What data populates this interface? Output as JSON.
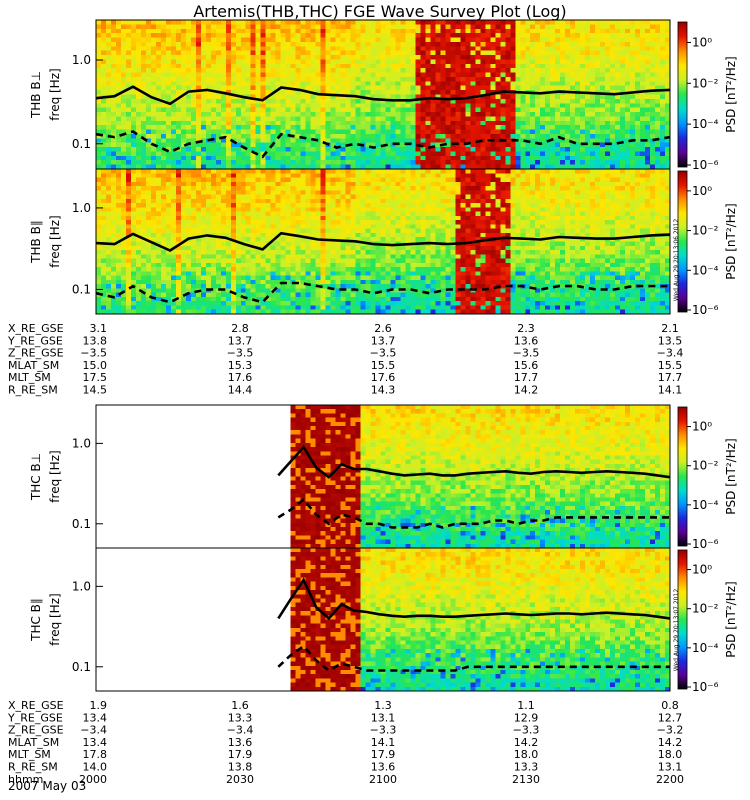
{
  "chart_data": {
    "type": "heatmap",
    "title": "Artemis(THB,THC) FGE Wave Survey Plot (Log)",
    "colorbar": {
      "label": "PSD [nT²/Hz]",
      "scale": "log",
      "range": [
        1e-06,
        10
      ],
      "ticks": [
        "10⁰",
        "10⁻²",
        "10⁻⁴",
        "10⁻⁶"
      ],
      "tick_values": [
        1,
        0.01,
        0.0001,
        1e-06
      ],
      "colors": [
        "#000000",
        "#5a0096",
        "#1e28dc",
        "#0096ff",
        "#00dccc",
        "#28e650",
        "#c8f028",
        "#ffe600",
        "#ff8c00",
        "#e61400",
        "#960000"
      ]
    },
    "yaxis": {
      "label": "freq [Hz]",
      "scale": "log",
      "ylim": [
        0.05,
        3.0
      ],
      "ticks": [
        "1.0",
        "0.1"
      ],
      "tick_values": [
        1.0,
        0.1
      ]
    },
    "panels": [
      {
        "id": "thb-bperp",
        "name": "THB B⊥",
        "ylabel": "freq [Hz]",
        "gap_until": 0.0,
        "storm": [
          0.55,
          0.73
        ],
        "solid_line": [
          0.35,
          0.37,
          0.48,
          0.36,
          0.3,
          0.42,
          0.44,
          0.4,
          0.36,
          0.33,
          0.47,
          0.44,
          0.39,
          0.38,
          0.37,
          0.34,
          0.33,
          0.33,
          0.35,
          0.34,
          0.35,
          0.38,
          0.42,
          0.41,
          0.4,
          0.42,
          0.41,
          0.4,
          0.39,
          0.41,
          0.43,
          0.44
        ],
        "dashed_line": [
          0.13,
          0.12,
          0.14,
          0.1,
          0.08,
          0.1,
          0.11,
          0.12,
          0.09,
          0.07,
          0.13,
          0.12,
          0.11,
          0.09,
          0.1,
          0.09,
          0.1,
          0.1,
          0.09,
          0.1,
          0.1,
          0.11,
          0.11,
          0.11,
          0.1,
          0.12,
          0.1,
          0.1,
          0.1,
          0.11,
          0.11,
          0.12
        ]
      },
      {
        "id": "thb-bpar",
        "name": "THB B∥",
        "ylabel": "freq [Hz]",
        "gap_until": 0.0,
        "storm": [
          0.62,
          0.72
        ],
        "solid_line": [
          0.37,
          0.36,
          0.48,
          0.38,
          0.3,
          0.42,
          0.46,
          0.43,
          0.36,
          0.31,
          0.49,
          0.45,
          0.41,
          0.4,
          0.39,
          0.36,
          0.35,
          0.36,
          0.37,
          0.36,
          0.37,
          0.4,
          0.43,
          0.42,
          0.41,
          0.44,
          0.43,
          0.42,
          0.42,
          0.44,
          0.46,
          0.47
        ],
        "dashed_line": [
          0.09,
          0.08,
          0.11,
          0.08,
          0.07,
          0.09,
          0.1,
          0.1,
          0.08,
          0.07,
          0.12,
          0.12,
          0.11,
          0.1,
          0.1,
          0.09,
          0.1,
          0.1,
          0.09,
          0.1,
          0.1,
          0.1,
          0.11,
          0.11,
          0.1,
          0.11,
          0.11,
          0.1,
          0.1,
          0.11,
          0.11,
          0.11
        ]
      },
      {
        "id": "thc-bperp",
        "name": "THC B⊥",
        "ylabel": "freq [Hz]",
        "gap_until": 0.335,
        "storm": [
          1.0,
          1.5
        ],
        "solid_line": [
          0.4,
          0.6,
          0.9,
          0.5,
          0.38,
          0.55,
          0.48,
          0.48,
          0.45,
          0.42,
          0.4,
          0.41,
          0.42,
          0.4,
          0.4,
          0.42,
          0.43,
          0.44,
          0.45,
          0.43,
          0.42,
          0.44,
          0.45,
          0.44,
          0.43,
          0.44,
          0.45,
          0.44,
          0.43,
          0.42,
          0.4,
          0.38
        ],
        "dashed_line": [
          0.12,
          0.15,
          0.2,
          0.13,
          0.1,
          0.13,
          0.12,
          0.1,
          0.1,
          0.09,
          0.09,
          0.09,
          0.1,
          0.09,
          0.1,
          0.1,
          0.1,
          0.11,
          0.11,
          0.1,
          0.11,
          0.11,
          0.12,
          0.12,
          0.12,
          0.12,
          0.12,
          0.12,
          0.12,
          0.12,
          0.12,
          0.12
        ]
      },
      {
        "id": "thc-bpar",
        "name": "THC B∥",
        "ylabel": "freq [Hz]",
        "gap_until": 0.335,
        "storm": [
          1.0,
          1.5
        ],
        "solid_line": [
          0.4,
          0.7,
          1.2,
          0.55,
          0.4,
          0.6,
          0.5,
          0.48,
          0.45,
          0.43,
          0.42,
          0.43,
          0.43,
          0.42,
          0.42,
          0.43,
          0.44,
          0.45,
          0.46,
          0.45,
          0.44,
          0.45,
          0.46,
          0.46,
          0.45,
          0.46,
          0.47,
          0.46,
          0.45,
          0.44,
          0.42,
          0.4
        ],
        "dashed_line": [
          0.1,
          0.14,
          0.18,
          0.12,
          0.09,
          0.11,
          0.1,
          0.09,
          0.09,
          0.09,
          0.09,
          0.09,
          0.09,
          0.09,
          0.09,
          0.1,
          0.1,
          0.1,
          0.1,
          0.1,
          0.1,
          0.1,
          0.1,
          0.1,
          0.1,
          0.1,
          0.1,
          0.1,
          0.1,
          0.1,
          0.1,
          0.1
        ]
      }
    ]
  },
  "stamps": [
    "Wed Aug 29 20:13:06 2012",
    "Wed Aug 29 20:13:07 2012"
  ],
  "thb_ephem": [
    {
      "label": "X_RE_GSE",
      "values": [
        "3.1",
        "2.8",
        "2.6",
        "2.3",
        "2.1"
      ]
    },
    {
      "label": "Y_RE_GSE",
      "values": [
        "13.8",
        "13.7",
        "13.7",
        "13.6",
        "13.5"
      ]
    },
    {
      "label": "Z_RE_GSE",
      "values": [
        "−3.5",
        "−3.5",
        "−3.5",
        "−3.5",
        "−3.4"
      ]
    },
    {
      "label": "MLAT_SM",
      "values": [
        "15.0",
        "15.3",
        "15.5",
        "15.6",
        "15.5"
      ]
    },
    {
      "label": "MLT_SM",
      "values": [
        "17.5",
        "17.6",
        "17.6",
        "17.7",
        "17.7"
      ]
    },
    {
      "label": "R_RE_SM",
      "values": [
        "14.5",
        "14.4",
        "14.3",
        "14.2",
        "14.1"
      ]
    }
  ],
  "thc_ephem": [
    {
      "label": "X_RE_GSE",
      "values": [
        "1.9",
        "1.6",
        "1.3",
        "1.1",
        "0.8"
      ]
    },
    {
      "label": "Y_RE_GSE",
      "values": [
        "13.4",
        "13.3",
        "13.1",
        "12.9",
        "12.7"
      ]
    },
    {
      "label": "Z_RE_GSE",
      "values": [
        "−3.4",
        "−3.4",
        "−3.3",
        "−3.3",
        "−3.2"
      ]
    },
    {
      "label": "MLAT_SM",
      "values": [
        "13.4",
        "13.6",
        "14.1",
        "14.2",
        "14.2"
      ]
    },
    {
      "label": "MLT_SM",
      "values": [
        "17.8",
        "17.9",
        "17.9",
        "18.0",
        "18.0"
      ]
    },
    {
      "label": "R_RE_SM",
      "values": [
        "14.0",
        "13.8",
        "13.6",
        "13.3",
        "13.1"
      ]
    },
    {
      "label": "hhmm",
      "values": [
        "2000",
        "2030",
        "2100",
        "2130",
        "2200"
      ]
    }
  ],
  "date_label": "2007 May 03"
}
